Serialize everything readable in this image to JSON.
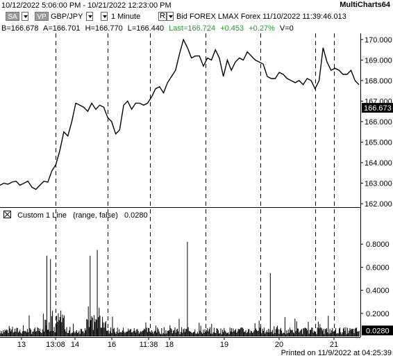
{
  "titlebar": {
    "range": "10/12/2022 5:06:00 PM - 10/21/2022 12:23:00 PM",
    "app": "MultiCharts64"
  },
  "toolbar": {
    "sa_label": "SA",
    "vp_label": "VP",
    "symbol": "GBP/JPY",
    "interval": "1 Minute",
    "r_label": "R",
    "info": "Bid  FOREX  LMAX  Forex  11/10/2022  11:39:46.013"
  },
  "quote": {
    "bid": "B=166.678",
    "ask": "A=166.701",
    "high": "H=166.770",
    "low": "L=166.440",
    "last": "Last=166.724",
    "change": "+0.453",
    "change_pct": "+0.27%",
    "volume": "V=0"
  },
  "indicator": {
    "name": "Custom 1 Line",
    "params": "(range,  false)",
    "value": "0.0280"
  },
  "footer": "Printed on 11/9/2022 at 04:25:39",
  "colors": {
    "price": "#000000",
    "last_badge": "#000000",
    "change": "#1aa31a"
  },
  "chart_data": [
    {
      "type": "line",
      "series": [
        {
          "values": [
            162.9,
            163.0,
            162.95,
            163.05,
            163.1,
            162.9,
            163.0,
            163.1,
            162.8,
            162.7,
            162.9,
            163.1,
            163.05,
            163.6,
            163.9,
            164.6,
            165.5,
            165.3,
            166.0,
            166.9,
            166.8,
            166.7,
            166.5,
            166.9,
            166.6,
            166.8,
            166.7,
            166.2,
            166.0,
            165.4,
            165.6,
            166.8,
            167.0,
            166.6,
            166.9,
            166.9,
            166.8,
            166.9,
            167.2,
            167.6,
            167.7,
            167.4,
            167.9,
            168.2,
            168.5,
            169.3,
            170.0,
            169.6,
            169.1,
            169.2,
            169.2,
            168.7,
            169.1,
            169.0,
            169.5,
            169.1,
            168.2,
            169.0,
            168.5,
            168.9,
            169.1,
            169.0,
            169.4,
            169.2,
            169.0,
            168.9,
            168.8,
            168.2,
            168.1,
            168.1,
            168.4,
            168.3,
            168.1,
            168.0,
            167.9,
            168.0,
            167.8,
            168.1,
            168.0,
            167.6,
            168.0,
            169.6,
            168.9,
            168.5,
            168.6,
            168.5,
            168.3,
            168.3,
            168.5,
            168.0,
            167.8
          ]
        }
      ],
      "last_value": 166.673,
      "y_ticks": [
        "170.000",
        "169.000",
        "168.000",
        "167.000",
        "166.000",
        "165.000",
        "164.000",
        "163.000",
        "162.000"
      ],
      "ylim": [
        161.9,
        170.3
      ]
    },
    {
      "type": "bar",
      "series": [
        {
          "name": "Custom 1 Line"
        }
      ],
      "last_value": 0.028,
      "y_ticks": [
        "0.8000",
        "0.6000",
        "0.4000",
        "0.2000"
      ],
      "ylim": [
        0,
        1.0
      ],
      "spikes": [
        [
          0.13,
          0.7
        ],
        [
          0.14,
          0.67
        ],
        [
          0.25,
          0.7
        ],
        [
          0.27,
          0.75
        ],
        [
          0.52,
          0.82
        ],
        [
          0.75,
          0.55
        ]
      ]
    }
  ],
  "x_axis": {
    "labels": [
      "13",
      "13:08",
      "14",
      "16",
      "11:38",
      "18",
      "19",
      "20",
      "21"
    ],
    "dashed_lines": [
      "13:08",
      "16",
      "11:38",
      "18",
      "19",
      "20",
      "21"
    ]
  }
}
